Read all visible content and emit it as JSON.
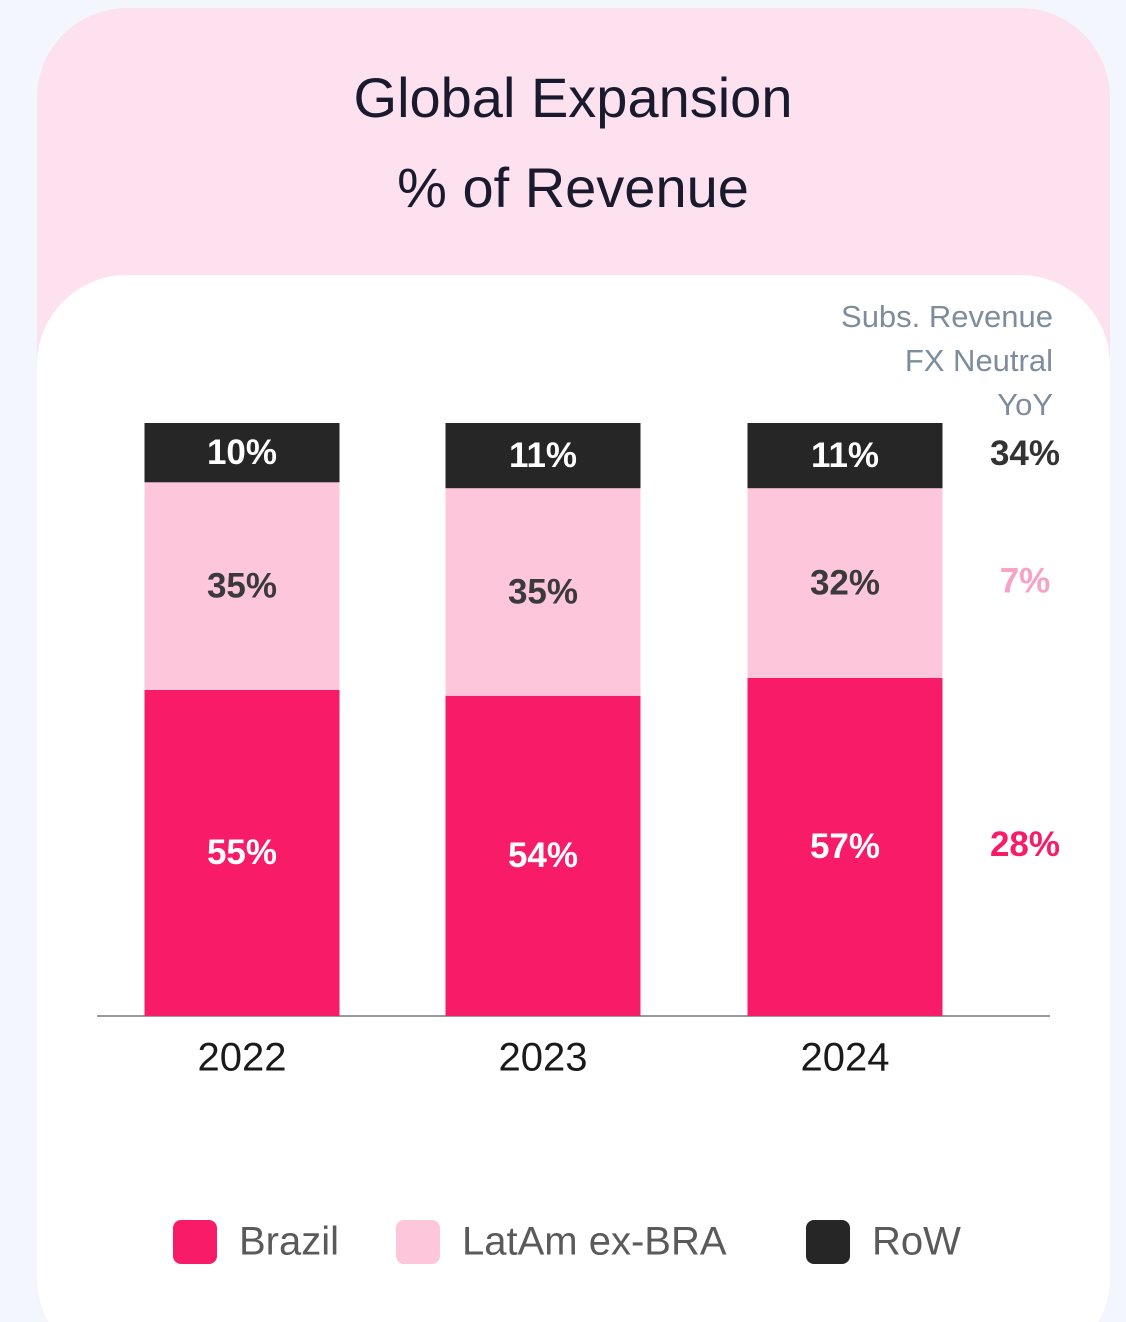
{
  "chart_data": {
    "type": "stacked_bar",
    "title": [
      "Global Expansion",
      "% of Revenue"
    ],
    "annotation": [
      "Subs. Revenue",
      "FX Neutral",
      "YoY"
    ],
    "categories": [
      "2022",
      "2023",
      "2024"
    ],
    "ylim": [
      0,
      100
    ],
    "series": [
      {
        "name": "Brazil",
        "color": "#f81b67",
        "values": [
          55,
          54,
          57
        ],
        "value_labels": [
          "55%",
          "54%",
          "57%"
        ],
        "yoy": 28,
        "yoy_label": "28%"
      },
      {
        "name": "LatAm ex-BRA",
        "color": "#fdc6da",
        "values": [
          35,
          35,
          32
        ],
        "value_labels": [
          "35%",
          "35%",
          "32%"
        ],
        "yoy": 7,
        "yoy_label": "7%"
      },
      {
        "name": "RoW",
        "color": "#262626",
        "values": [
          10,
          11,
          11
        ],
        "value_labels": [
          "10%",
          "11%",
          "11%"
        ],
        "yoy": 34,
        "yoy_label": "34%"
      }
    ]
  }
}
